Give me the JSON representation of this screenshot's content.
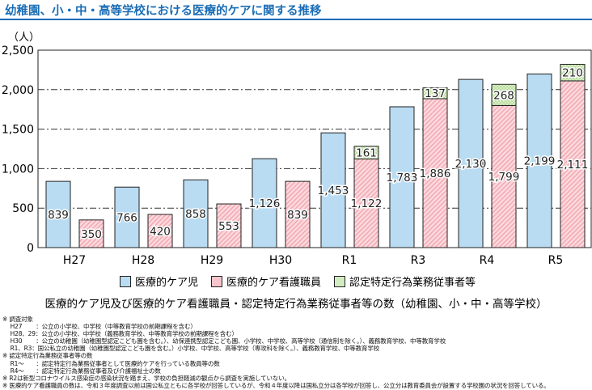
{
  "title": "幼稚園、小・中・高等学校における医療的ケアに関する推移",
  "chart_data": {
    "type": "bar",
    "title": "幼稚園、小・中・高等学校における医療的ケアに関する推移",
    "ylabel": "（人）",
    "ylim": [
      0,
      2500
    ],
    "yticks": [
      "0",
      "500",
      "1,000",
      "1,500",
      "2,000",
      "2,500"
    ],
    "categories": [
      "H27",
      "H28",
      "H29",
      "H30",
      "R1",
      "R3",
      "R4",
      "R5"
    ],
    "series": [
      {
        "name": "医療的ケア児",
        "color": "#b9dcf2",
        "values": [
          839,
          766,
          858,
          1126,
          1453,
          1783,
          2130,
          2199
        ],
        "labels": [
          "839",
          "766",
          "858",
          "1,126",
          "1,453",
          "1,783",
          "2,130",
          "2,199"
        ]
      },
      {
        "name": "医療的ケア看護職員",
        "color": "#f7c5cc",
        "values": [
          350,
          420,
          553,
          839,
          1122,
          1886,
          1799,
          2111
        ],
        "labels": [
          "350",
          "420",
          "553",
          "839",
          "1,122",
          "1,886",
          "1,799",
          "2,111"
        ]
      },
      {
        "name": "認定特定行為業務従事者等",
        "color": "#d3ebc0",
        "values": [
          null,
          null,
          null,
          null,
          161,
          137,
          268,
          210
        ],
        "labels": [
          "",
          "",
          "",
          "",
          "161",
          "137",
          "268",
          "210"
        ]
      }
    ],
    "grid": true,
    "legend": "bottom",
    "caption": "医療的ケア児及び医療的ケア看護職員・認定特定行為業務従事者等の数（幼稚園、小・中・高等学校）"
  },
  "notes": [
    "※ 調査対象",
    "　 H27　　 ：公立の小学校、中学校（中等教育学校の前期課程を含む）",
    "　 H28、29：公立の小学校、中学校（義務教育学校、中等教育学校の前期課程を含む）",
    "　 H30　　 ：公立の幼稚園（幼稚園型認定こども園を含む。）、幼保連携型認定こども園、小学校、中学校、高等学校（通信制を除く。）、義務教育学校、中等教育学校",
    "　 R1、R3：国公私立の幼稚園（幼稚園型認定こども園を含む。）小学校、中学校、高等学校（専攻科を除く。）、義務教育学校、中等教育学校",
    "※ 認定特定行為業務従事者等の数",
    "　 R1～　　：認定特定行為業務従事者として医療的ケアを行っている教員等の数",
    "　 R4～　　：認定特定行為業務従事者及び介護福祉士の数",
    "※ R2は新型コロナウイルス感染症の感染状況を踏まえ、学校の負担軽減の観点から調査を実施していない。",
    "※ 医療的ケア看護職員の数は、令和３年度調査以前は国公私立ともに各学校が回答しているが、令和４年度以降は国私立分は各学校が回答し、公立分は教育委員会が設置する学校園の状況を回答している。"
  ]
}
